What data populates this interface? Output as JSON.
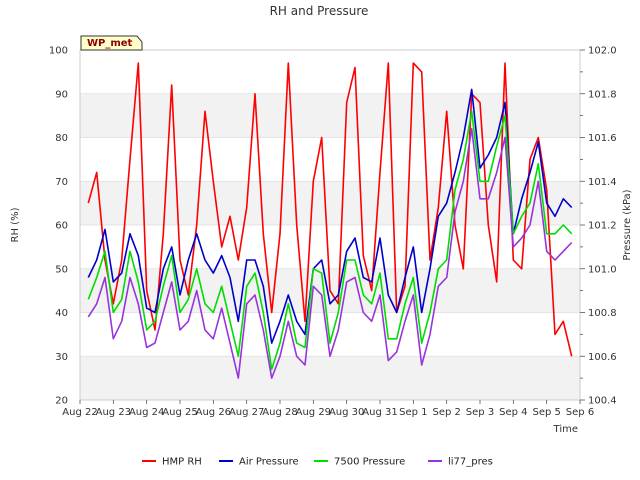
{
  "chart_data": {
    "type": "line",
    "title": "RH and Pressure",
    "xlabel": "Time",
    "ylabel_left": "RH (%)",
    "ylabel_right": "Pressure (kPa)",
    "badge": "WP_met",
    "y_left_lim": [
      20,
      100
    ],
    "y_left_ticks": [
      "20",
      "30",
      "40",
      "50",
      "60",
      "70",
      "80",
      "90",
      "100"
    ],
    "y_right_lim": [
      100.4,
      102.0
    ],
    "y_right_ticks": [
      "100.4",
      "100.6",
      "100.8",
      "101.0",
      "101.2",
      "101.4",
      "101.6",
      "101.8",
      "102.0"
    ],
    "x_lim": [
      0,
      15
    ],
    "x_ticks": [
      "Aug 22",
      "Aug 23",
      "Aug 24",
      "Aug 25",
      "Aug 26",
      "Aug 27",
      "Aug 28",
      "Aug 29",
      "Aug 30",
      "Aug 31",
      "Sep 1",
      "Sep 2",
      "Sep 3",
      "Sep 4",
      "Sep 5",
      "Sep 6"
    ],
    "grid": true,
    "legend_position": "bottom",
    "x": [
      0.25,
      0.5,
      0.75,
      1.0,
      1.25,
      1.5,
      1.75,
      2.0,
      2.25,
      2.5,
      2.75,
      3.0,
      3.25,
      3.5,
      3.75,
      4.0,
      4.25,
      4.5,
      4.75,
      5.0,
      5.25,
      5.5,
      5.75,
      6.0,
      6.25,
      6.5,
      6.75,
      7.0,
      7.25,
      7.5,
      7.75,
      8.0,
      8.25,
      8.5,
      8.75,
      9.0,
      9.25,
      9.5,
      9.75,
      10.0,
      10.25,
      10.5,
      10.75,
      11.0,
      11.25,
      11.5,
      11.75,
      12.0,
      12.25,
      12.5,
      12.75,
      13.0,
      13.25,
      13.5,
      13.75,
      14.0,
      14.25,
      14.5,
      14.75
    ],
    "series": [
      {
        "name": "HMP RH",
        "color": "#ff0000",
        "axis": "left",
        "values": [
          65,
          72,
          52,
          42,
          52,
          75,
          97,
          45,
          36,
          58,
          92,
          52,
          44,
          60,
          86,
          70,
          55,
          62,
          52,
          64,
          90,
          58,
          40,
          58,
          97,
          60,
          38,
          70,
          80,
          45,
          42,
          88,
          96,
          53,
          45,
          72,
          97,
          40,
          46,
          97,
          95,
          52,
          64,
          86,
          60,
          50,
          90,
          88,
          60,
          47,
          97,
          52,
          50,
          75,
          80,
          68,
          35,
          38,
          30
        ]
      },
      {
        "name": "Air Pressure",
        "color": "#0000cc",
        "axis": "left",
        "values": [
          48,
          52,
          59,
          47,
          49,
          58,
          53,
          41,
          40,
          50,
          55,
          44,
          52,
          58,
          52,
          49,
          53,
          48,
          38,
          52,
          52,
          46,
          33,
          38,
          44,
          38,
          35,
          50,
          52,
          42,
          44,
          54,
          57,
          48,
          47,
          57,
          44,
          40,
          48,
          55,
          40,
          50,
          62,
          65,
          72,
          80,
          91,
          73,
          76,
          80,
          88,
          58,
          66,
          72,
          79,
          65,
          62,
          66,
          64
        ]
      },
      {
        "name": "7500 Pressure",
        "color": "#00dd00",
        "axis": "left",
        "values": [
          43,
          48,
          54,
          40,
          43,
          54,
          47,
          36,
          38,
          46,
          53,
          40,
          43,
          50,
          42,
          40,
          46,
          38,
          30,
          46,
          49,
          40,
          27,
          33,
          42,
          33,
          32,
          50,
          49,
          33,
          40,
          52,
          52,
          44,
          42,
          49,
          34,
          34,
          42,
          48,
          33,
          40,
          50,
          52,
          68,
          75,
          86,
          70,
          70,
          78,
          85,
          58,
          62,
          65,
          74,
          58,
          58,
          60,
          58
        ]
      },
      {
        "name": "li77_pres",
        "color": "#9933dd",
        "axis": "left",
        "values": [
          39,
          42,
          48,
          34,
          38,
          48,
          42,
          32,
          33,
          40,
          47,
          36,
          38,
          45,
          36,
          34,
          41,
          33,
          25,
          42,
          44,
          36,
          25,
          30,
          38,
          30,
          28,
          46,
          44,
          30,
          36,
          47,
          48,
          40,
          38,
          44,
          29,
          31,
          38,
          44,
          28,
          35,
          46,
          48,
          63,
          70,
          82,
          66,
          66,
          72,
          80,
          55,
          57,
          60,
          70,
          54,
          52,
          54,
          56
        ]
      }
    ]
  }
}
